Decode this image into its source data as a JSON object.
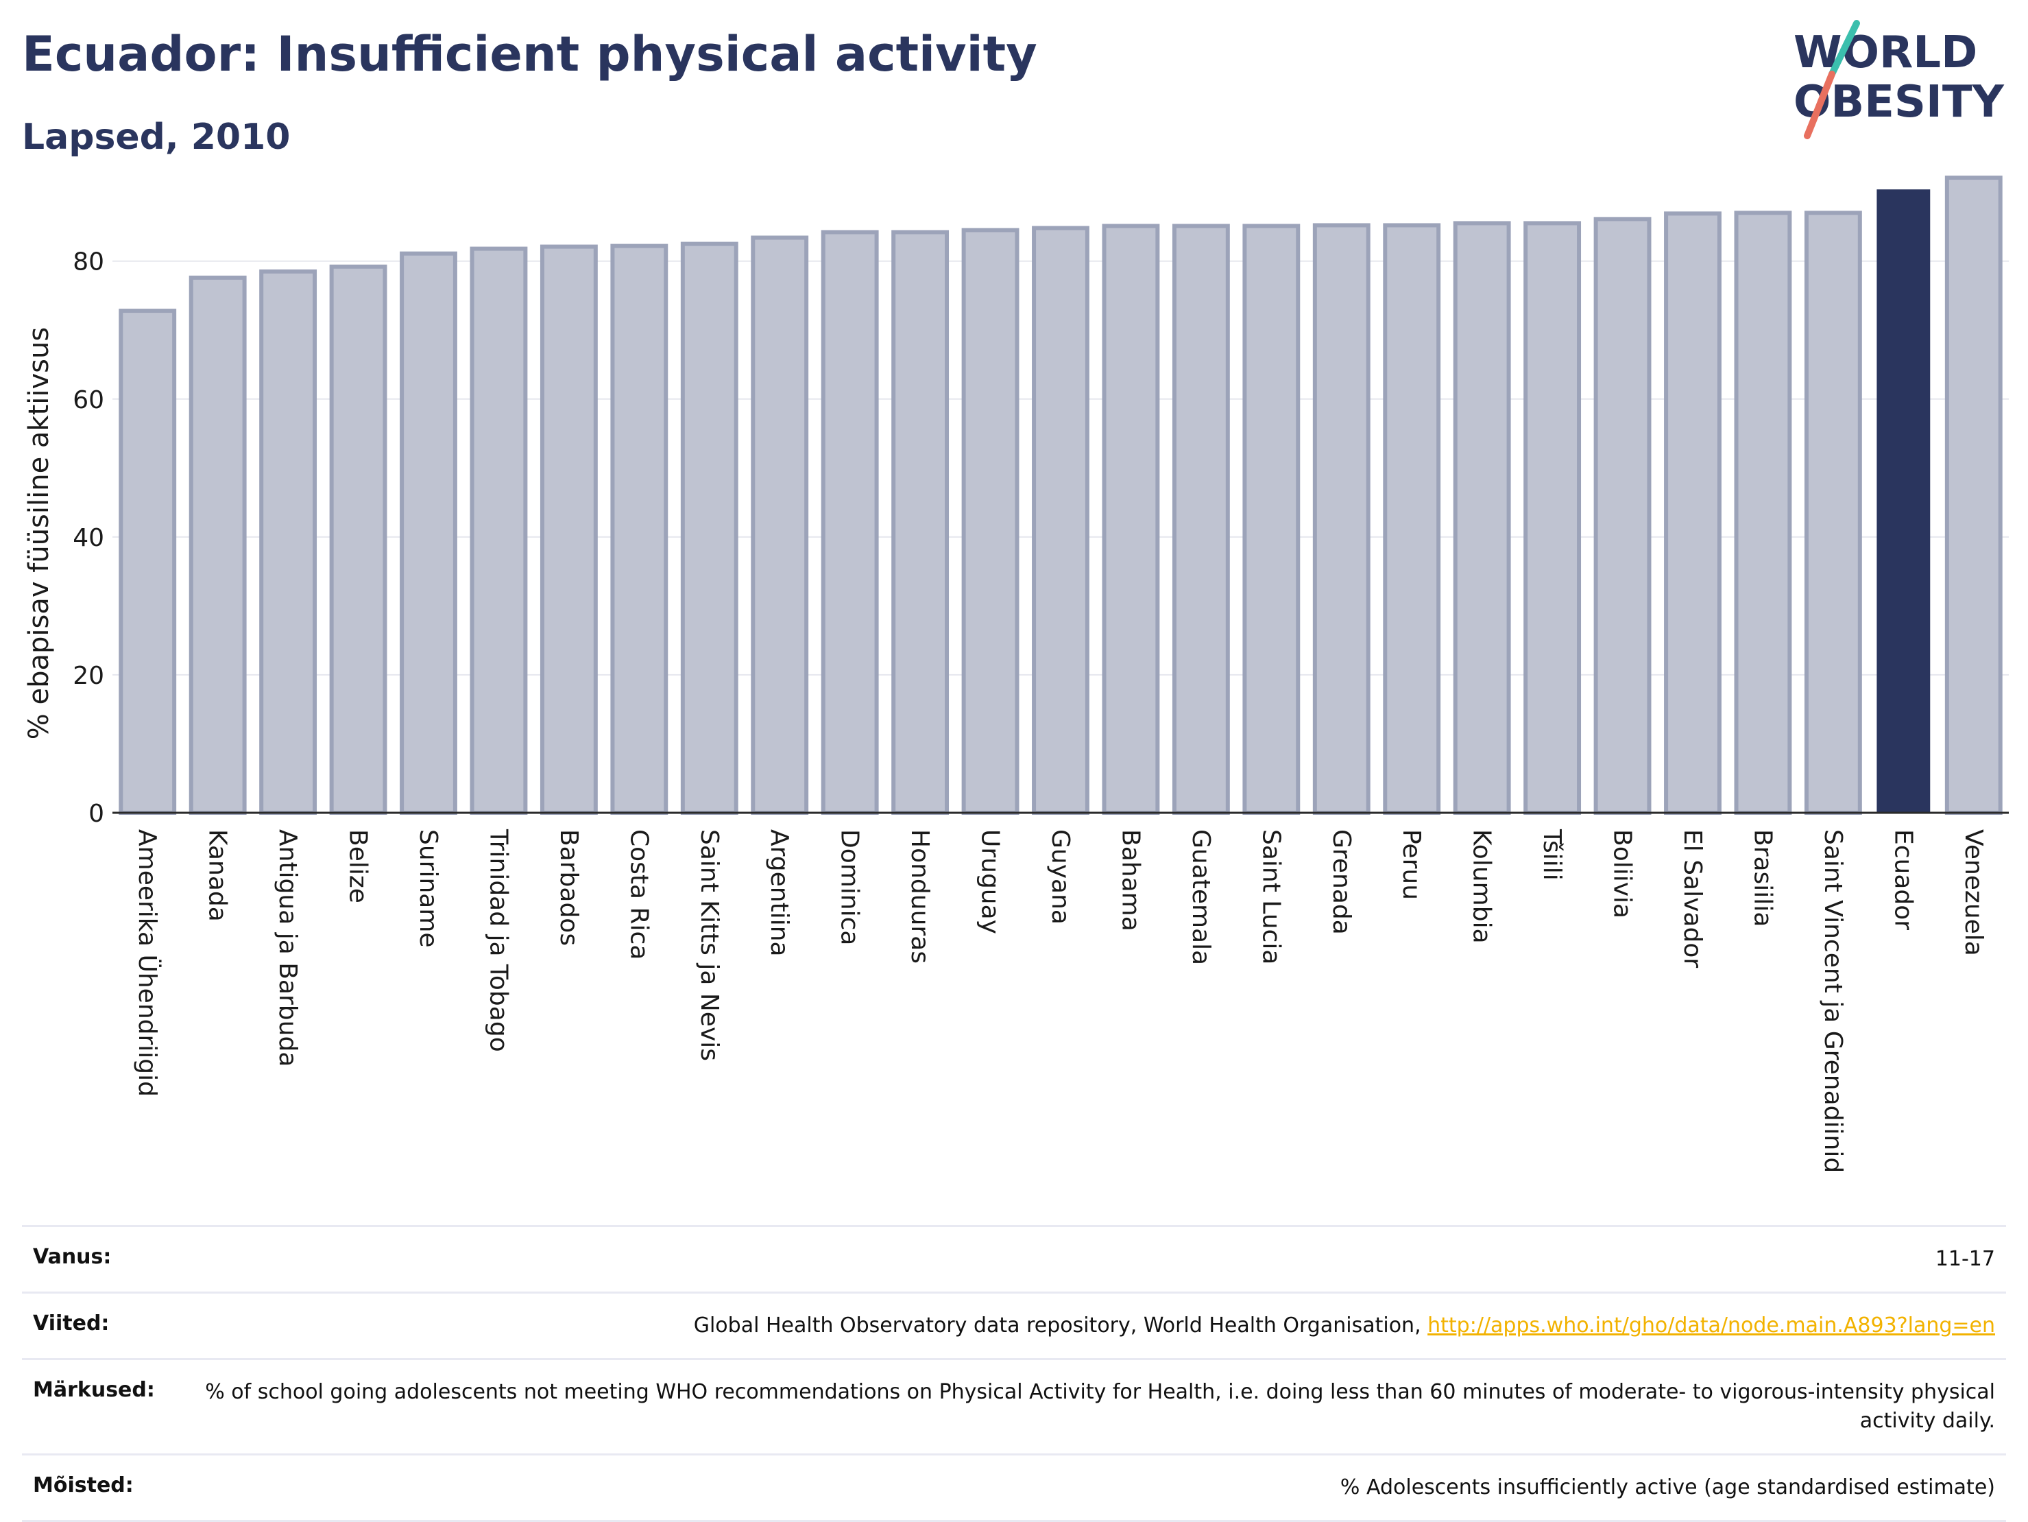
{
  "header": {
    "title": "Ecuador: Insufficient physical activity",
    "subtitle": "Lapsed, 2010",
    "logo_line1": "WORLD",
    "logo_line2": "OBESITY"
  },
  "colors": {
    "highlight": "#2a355e",
    "bar_fill": "#bfc3d1",
    "bar_stroke": "#9ca3b9",
    "logo_teal": "#3bbfad",
    "logo_coral": "#e8705f",
    "link": "#f2b200"
  },
  "chart_data": {
    "type": "bar",
    "title": "Ecuador: Insufficient physical activity",
    "subtitle": "Lapsed, 2010",
    "ylabel": "% ebapisav füüsiline aktiivsus",
    "xlabel": "",
    "ylim": [
      0,
      93
    ],
    "yticks": [
      0,
      20,
      40,
      60,
      80
    ],
    "grid": true,
    "highlight_category": "Ecuador",
    "categories": [
      "Ameerika Ühendriigid",
      "Kanada",
      "Antigua ja Barbuda",
      "Belize",
      "Suriname",
      "Trinidad ja Tobago",
      "Barbados",
      "Costa Rica",
      "Saint Kitts ja Nevis",
      "Argentiina",
      "Dominica",
      "Honduuras",
      "Uruguay",
      "Guyana",
      "Bahama",
      "Guatemala",
      "Saint Lucia",
      "Grenada",
      "Peruu",
      "Kolumbia",
      "Tšiili",
      "Boliivia",
      "El Salvador",
      "Brasiilia",
      "Saint Vincent ja Grenadiinid",
      "Ecuador",
      "Venezuela"
    ],
    "values": [
      72.8,
      77.6,
      78.5,
      79.2,
      81.1,
      81.8,
      82.1,
      82.2,
      82.5,
      83.4,
      84.2,
      84.2,
      84.5,
      84.8,
      85.1,
      85.1,
      85.1,
      85.2,
      85.2,
      85.5,
      85.5,
      86.1,
      86.9,
      87.0,
      87.0,
      90.4,
      92.1
    ]
  },
  "info": [
    {
      "label": "Vanus:",
      "value": "11-17"
    },
    {
      "label": "Viited:",
      "value": "Global Health Observatory data repository, World Health Organisation, ",
      "link": "http://apps.who.int/gho/data/node.main.A893?lang=en"
    },
    {
      "label": "Märkused:",
      "value": "% of school going adolescents not meeting WHO recommendations on Physical Activity for Health, i.e. doing less than 60 minutes of moderate- to vigorous-intensity physical activity daily."
    },
    {
      "label": "Mõisted:",
      "value": "% Adolescents insufficiently active (age standardised estimate)"
    }
  ]
}
